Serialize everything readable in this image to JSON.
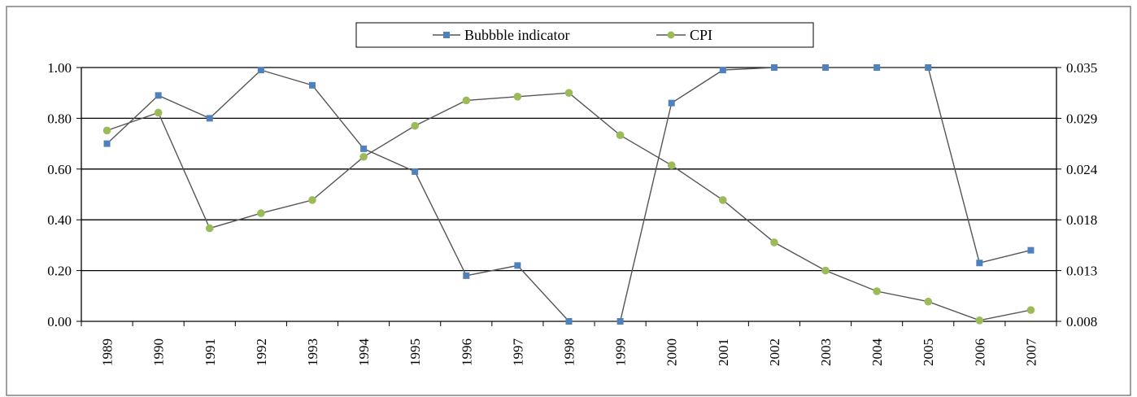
{
  "chart_data": {
    "type": "line",
    "categories": [
      "1989",
      "1990",
      "1991",
      "1992",
      "1993",
      "1994",
      "1995",
      "1996",
      "1997",
      "1998",
      "1999",
      "2000",
      "2001",
      "2002",
      "2003",
      "2004",
      "2005",
      "2006",
      "2007"
    ],
    "series": [
      {
        "name": "Bubbble indicator",
        "axis": "left",
        "color": "#4f81bd",
        "marker": "square",
        "values": [
          0.7,
          0.89,
          0.8,
          0.99,
          0.93,
          0.68,
          0.59,
          0.18,
          0.22,
          0.0,
          0.0,
          0.86,
          0.99,
          1.0,
          1.0,
          1.0,
          1.0,
          0.23,
          0.28
        ]
      },
      {
        "name": "CPI",
        "axis": "right",
        "color": "#9bbb59",
        "marker": "circle",
        "values": [
          0.0283,
          0.0302,
          0.0179,
          0.0195,
          0.0209,
          0.0255,
          0.0288,
          0.0315,
          0.0319,
          0.0323,
          0.0278,
          0.0246,
          0.0209,
          0.0164,
          0.0134,
          0.0112,
          0.0101,
          0.0081,
          0.0092
        ]
      }
    ],
    "y_left": {
      "ylim": [
        0,
        1
      ],
      "ticks": [
        "0.00",
        "0.20",
        "0.40",
        "0.60",
        "0.80",
        "1.00"
      ]
    },
    "y_right": {
      "ylim": [
        0.008,
        0.035
      ],
      "ticks": [
        "0.008",
        "0.013",
        "0.018",
        "0.024",
        "0.029",
        "0.035"
      ]
    },
    "legend": {
      "placement": "top-center"
    },
    "grid": true,
    "axis_color": "#000000",
    "frame_color": "#808080"
  }
}
